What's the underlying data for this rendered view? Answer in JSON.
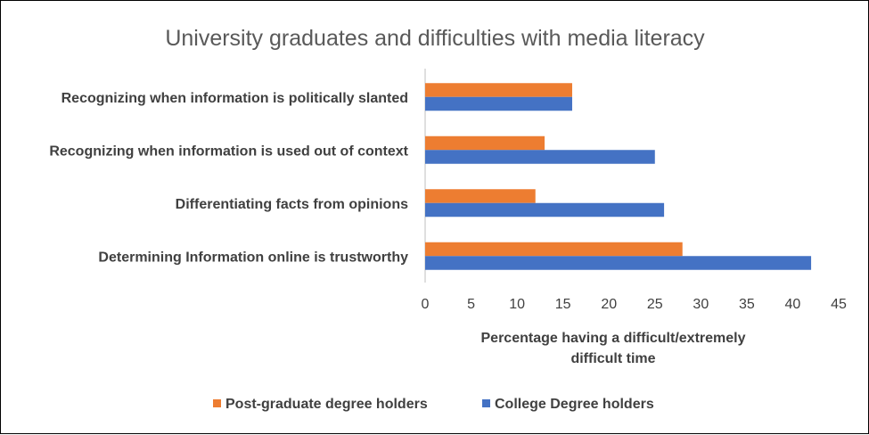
{
  "chart_data": {
    "type": "bar",
    "orientation": "horizontal",
    "title": "University graduates and difficulties with media literacy",
    "xlabel_lines": [
      "Percentage having a difficult/extremely",
      "difficult time"
    ],
    "categories": [
      "Recognizing when information is politically slanted",
      "Recognizing when information is used out of context",
      "Differentiating facts from opinions",
      "Determining Information online is trustworthy"
    ],
    "series": [
      {
        "name": "Post-graduate degree holders",
        "color": "#ED7D31",
        "values": [
          16,
          13,
          12,
          28
        ]
      },
      {
        "name": "College Degree holders",
        "color": "#4472C4",
        "values": [
          16,
          25,
          26,
          42
        ]
      }
    ],
    "xlim": [
      0,
      45
    ],
    "xticks": [
      0,
      5,
      10,
      15,
      20,
      25,
      30,
      35,
      40,
      45
    ],
    "grid": false,
    "legend_position": "bottom"
  }
}
